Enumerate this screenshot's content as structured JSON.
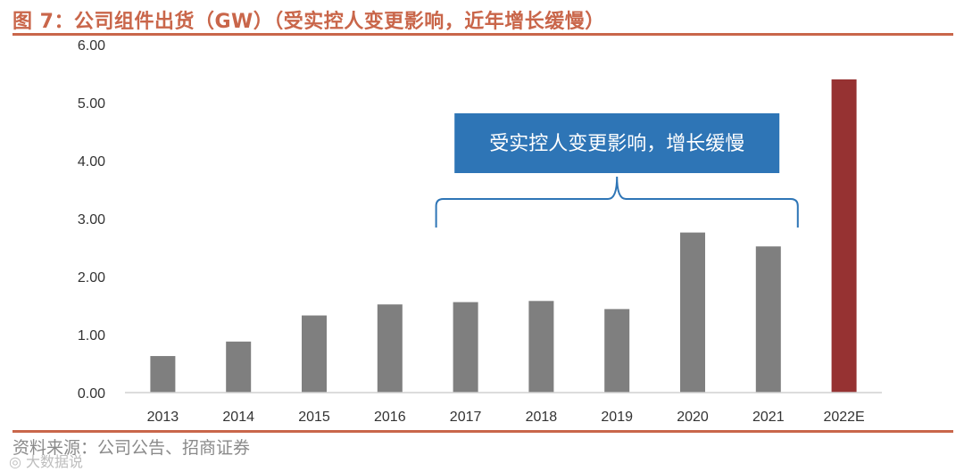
{
  "figure": {
    "title": "图 7：公司组件出货（GW）（受实控人变更影响，近年增长缓慢）",
    "source": "资料来源：公司公告、招商证券",
    "watermark": "◎ 大数据说"
  },
  "colors": {
    "accent": "#c9664a",
    "bar_actual": "#7f7f7f",
    "bar_estimate": "#963232",
    "callout_fill": "#2e75b6",
    "brace": "#2e75b6"
  },
  "chart_data": {
    "type": "bar",
    "title": "",
    "xlabel": "",
    "ylabel": "",
    "categories": [
      "2013",
      "2014",
      "2015",
      "2016",
      "2017",
      "2018",
      "2019",
      "2020",
      "2021",
      "2022E"
    ],
    "series": [
      {
        "values": [
          0.63,
          0.88,
          1.33,
          1.52,
          1.56,
          1.58,
          1.44,
          2.76,
          2.52,
          5.4
        ]
      }
    ],
    "estimate_categories": [
      "2022E"
    ],
    "ylim": [
      0,
      6
    ],
    "yticks": [
      0,
      1,
      2,
      3,
      4,
      5,
      6
    ],
    "ytick_labels": [
      "0.00",
      "1.00",
      "2.00",
      "3.00",
      "4.00",
      "5.00",
      "6.00"
    ],
    "grid": false,
    "legend": "none",
    "annotation": {
      "text": "受实控人变更影响，增长缓慢",
      "span": [
        "2017",
        "2021"
      ]
    }
  }
}
